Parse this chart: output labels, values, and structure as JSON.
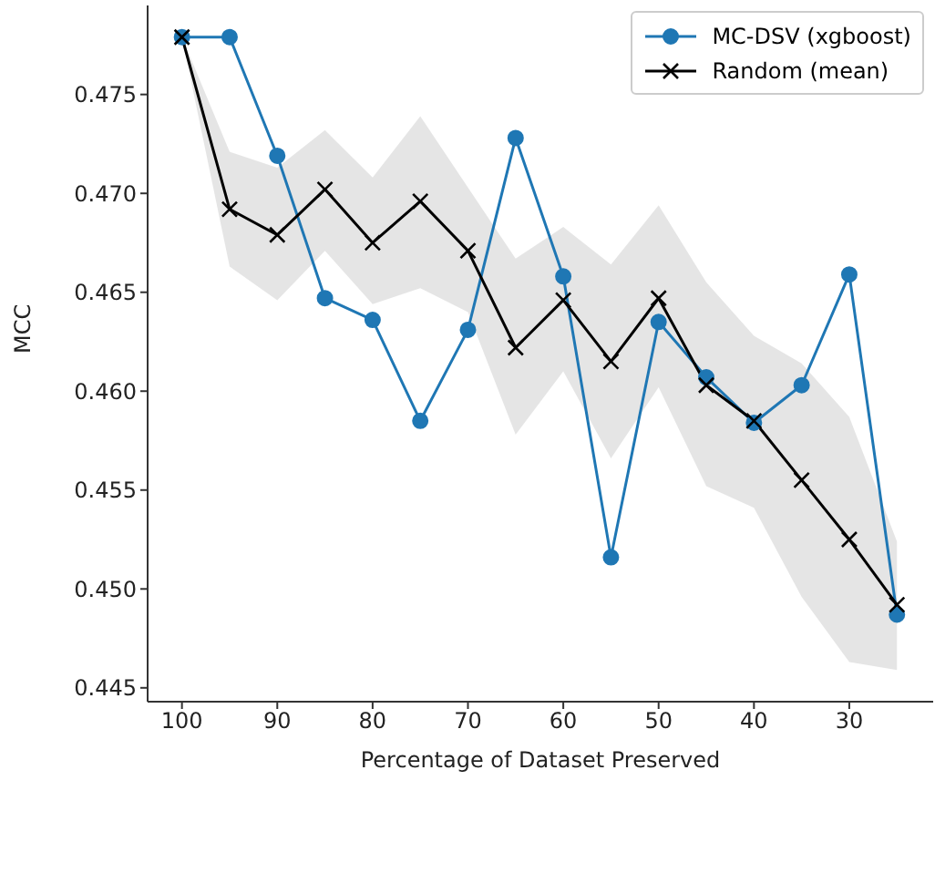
{
  "chart_data": {
    "type": "line",
    "xlabel": "Percentage of Dataset Preserved",
    "ylabel": "MCC",
    "x": [
      100,
      95,
      90,
      85,
      80,
      75,
      70,
      65,
      60,
      55,
      50,
      45,
      40,
      35,
      30,
      25
    ],
    "xlim": [
      103.6,
      21.2
    ],
    "xticks": [
      100,
      90,
      80,
      70,
      60,
      50,
      40,
      30
    ],
    "ylim": [
      0.4443,
      0.4795
    ],
    "yticks": [
      0.445,
      {
        "value": 0.45,
        "label": "0.450"
      },
      0.455,
      {
        "value": 0.46,
        "label": "0.460"
      },
      0.465,
      {
        "value": 0.47,
        "label": "0.470"
      },
      0.475
    ],
    "legend": "top right",
    "grid": false,
    "line_style": "solid",
    "series": [
      {
        "name": "MC-DSV (xgboost)",
        "color": "#1f77b4",
        "marker": "circle",
        "values": [
          0.4779,
          0.4779,
          0.4719,
          0.4647,
          0.4636,
          0.4585,
          0.4631,
          0.4728,
          0.4658,
          0.4516,
          0.4635,
          0.4607,
          0.4584,
          0.4603,
          0.4659,
          0.4487
        ]
      },
      {
        "name": "Random (mean)",
        "color": "#000000",
        "marker": "cross",
        "values": [
          0.4779,
          0.4692,
          0.4679,
          0.4702,
          0.4675,
          0.4696,
          0.4671,
          0.4622,
          0.4646,
          0.4615,
          0.4647,
          0.4603,
          0.4585,
          0.4555,
          0.4525,
          0.4492
        ],
        "lower": [
          0.4779,
          0.4663,
          0.4646,
          0.4671,
          0.4644,
          0.4652,
          0.464,
          0.4578,
          0.461,
          0.4566,
          0.4602,
          0.4552,
          0.4541,
          0.4496,
          0.4463,
          0.4459
        ],
        "upper": [
          0.4779,
          0.4721,
          0.4713,
          0.4732,
          0.4708,
          0.4739,
          0.4703,
          0.4667,
          0.4683,
          0.4664,
          0.4694,
          0.4655,
          0.4628,
          0.4614,
          0.4587,
          0.4524
        ]
      }
    ]
  }
}
